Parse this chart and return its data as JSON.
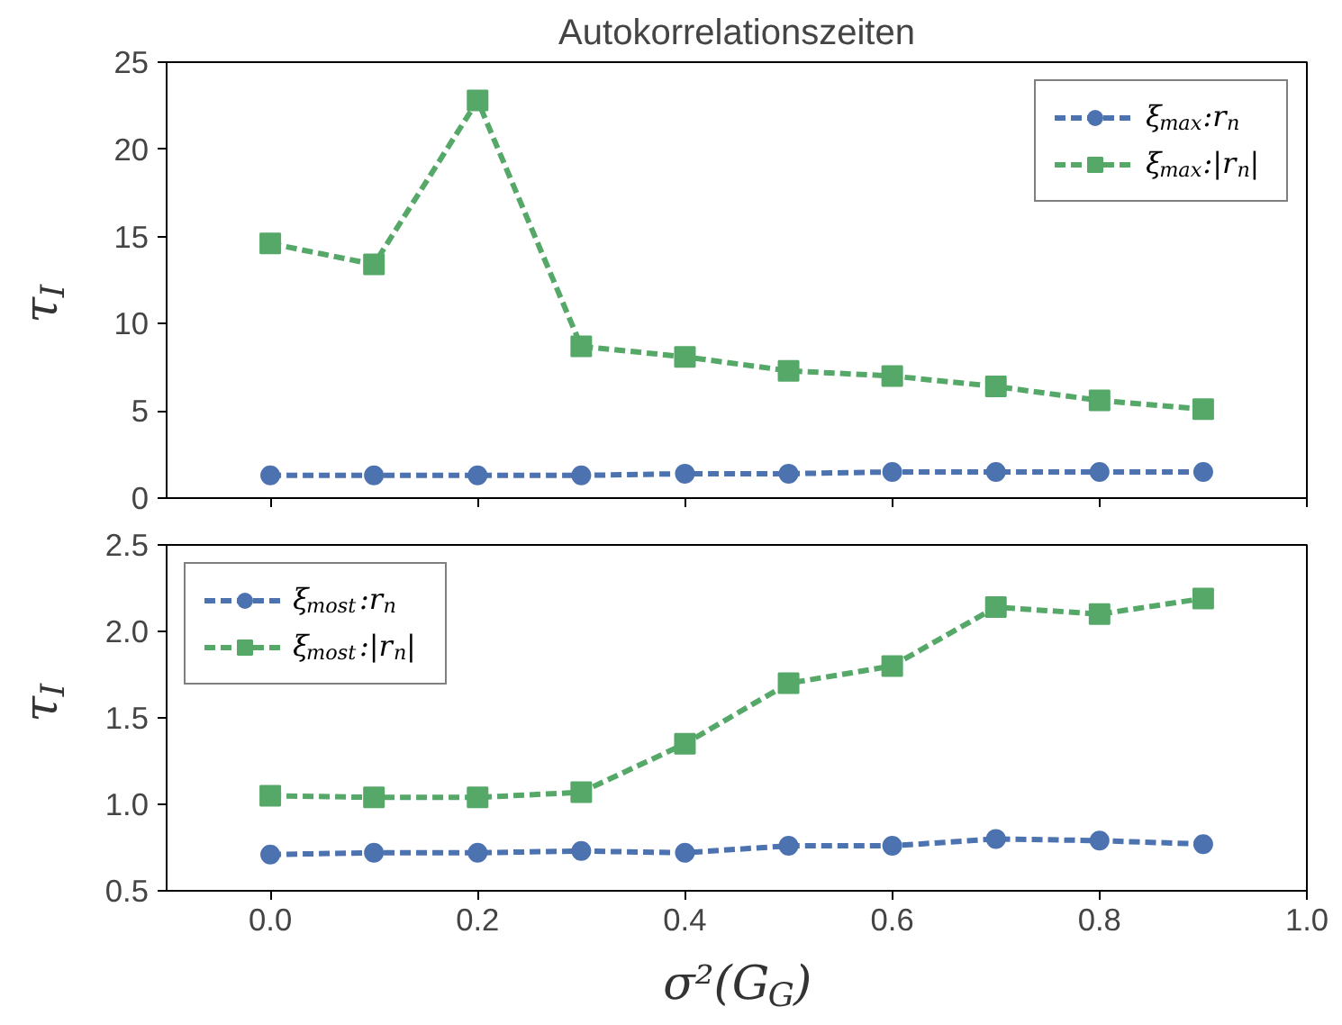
{
  "chart_data": [
    {
      "type": "line",
      "title": "Autokorrelationszeiten",
      "ylabel": "τ$_{I}$",
      "x": [
        0.0,
        0.1,
        0.2,
        0.3,
        0.4,
        0.5,
        0.6,
        0.7,
        0.8,
        0.9
      ],
      "xlim": [
        -0.1,
        1.0
      ],
      "xticks": [
        0.0,
        0.2,
        0.4,
        0.6,
        0.8,
        1.0
      ],
      "ylim": [
        0,
        25
      ],
      "yticks": [
        0,
        5,
        10,
        15,
        20,
        25
      ],
      "tick_labels": "y",
      "grid": false,
      "legend": "top right",
      "line_style": "dashed",
      "series": [
        {
          "name": "ξ$_{max}$:r$_{n}$",
          "color": "#4c72b0",
          "marker": "circle",
          "values": [
            1.3,
            1.3,
            1.3,
            1.3,
            1.4,
            1.4,
            1.5,
            1.5,
            1.5,
            1.5
          ]
        },
        {
          "name": "ξ$_{max}$:|r$_{n}$|",
          "color": "#55a868",
          "marker": "square",
          "values": [
            14.6,
            13.4,
            22.8,
            8.7,
            8.1,
            7.3,
            7.0,
            6.4,
            5.6,
            5.1
          ]
        }
      ]
    },
    {
      "type": "line",
      "xlabel": "σ²(G$_{G}$)",
      "ylabel": "τ$_{I}$",
      "x": [
        0.0,
        0.1,
        0.2,
        0.3,
        0.4,
        0.5,
        0.6,
        0.7,
        0.8,
        0.9
      ],
      "xlim": [
        -0.1,
        1.0
      ],
      "xticks": [
        {
          "value": 0.0,
          "label": "0.0"
        },
        {
          "value": 0.2,
          "label": "0.2"
        },
        {
          "value": 0.4,
          "label": "0.4"
        },
        {
          "value": 0.6,
          "label": "0.6"
        },
        {
          "value": 0.8,
          "label": "0.8"
        },
        {
          "value": 1.0,
          "label": "1.0"
        }
      ],
      "ylim": [
        0.5,
        2.5
      ],
      "yticks": [
        0.5,
        {
          "value": 1.0,
          "label": "1.0"
        },
        1.5,
        {
          "value": 2.0,
          "label": "2.0"
        },
        2.5
      ],
      "grid": false,
      "legend": "top left",
      "line_style": "dashed",
      "series": [
        {
          "name": "ξ$_{most}$:r$_{n}$",
          "color": "#4c72b0",
          "marker": "circle",
          "values": [
            0.71,
            0.72,
            0.72,
            0.73,
            0.72,
            0.76,
            0.76,
            0.8,
            0.79,
            0.77
          ]
        },
        {
          "name": "ξ$_{most}$:|r$_{n}$|",
          "color": "#55a868",
          "marker": "square",
          "values": [
            1.05,
            1.04,
            1.04,
            1.07,
            1.35,
            1.7,
            1.8,
            2.14,
            2.1,
            2.19
          ]
        }
      ]
    }
  ]
}
